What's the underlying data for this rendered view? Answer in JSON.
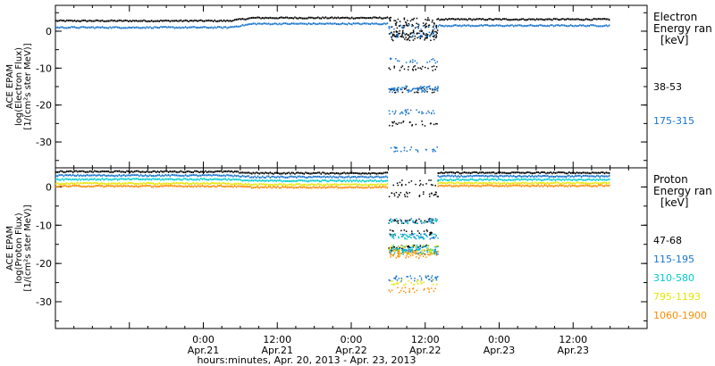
{
  "chart_data": [
    {
      "type": "scatter",
      "panel": "top",
      "ylabel_lines": [
        "ACE EPAM",
        "log(Electron Flux)",
        "[1/(cm²s ster MeV)]"
      ],
      "ylim": [
        -37,
        7
      ],
      "yticks": [
        0,
        -10,
        -20,
        -30
      ],
      "legend_title_lines": [
        "Electron",
        "Energy ran",
        "[keV]"
      ],
      "series": [
        {
          "name": "38-53",
          "color": "#000000",
          "description": "flux ~2.5 log units before Apr 21 ~08:00 rising to ~3.5, data gap with scattered points Apr 22 06:00-14:00 (values ~-1 to 3, a few near -10, -16, -25), then ~3.2"
        },
        {
          "name": "175-315",
          "color": "#1874cd",
          "description": "flux ~1 log unit before Apr 21 ~08:00 rising to ~2, gap region Apr 22 06:00-14:00 with cluster near -16 and scattered points near -8, -22, -32, then ~1.5"
        }
      ]
    },
    {
      "type": "scatter",
      "panel": "bottom",
      "ylabel_lines": [
        "ACE EPAM",
        "log(Proton Flux)",
        "[1/(cm²s ster MeV)]"
      ],
      "ylim": [
        -37,
        5
      ],
      "yticks": [
        0,
        -10,
        -20,
        -30
      ],
      "legend_title_lines": [
        "Proton",
        "Energy ran",
        "[keV]"
      ],
      "series": [
        {
          "name": "47-68",
          "color": "#000000",
          "description": "~3.5 level, gap-region points near -9, -12, -16"
        },
        {
          "name": "115-195",
          "color": "#1874cd",
          "description": "~2.5 level, gap-region points near -9, -13, -17, -24"
        },
        {
          "name": "310-580",
          "color": "#00cccc",
          "description": "~1.5 level, gap-region points near -9, -13, -17"
        },
        {
          "name": "795-1193",
          "color": "#e6e600",
          "description": "~0.5 level, gap-region points near -17, -25"
        },
        {
          "name": "1060-1900",
          "color": "#ff8c00",
          "description": "~0 level, gap-region points near -17, -27"
        }
      ]
    }
  ],
  "x_axis": {
    "ticks": [
      {
        "time": "0:00",
        "date": "Apr.21",
        "hours_since_start": 24
      },
      {
        "time": "12:00",
        "date": "Apr.21",
        "hours_since_start": 36
      },
      {
        "time": "0:00",
        "date": "Apr.22",
        "hours_since_start": 48
      },
      {
        "time": "12:00",
        "date": "Apr.22",
        "hours_since_start": 60
      },
      {
        "time": "0:00",
        "date": "Apr.23",
        "hours_since_start": 72
      },
      {
        "time": "12:00",
        "date": "Apr.23",
        "hours_since_start": 84
      }
    ],
    "xlabel": "hours:minutes, Apr. 20, 2013 - Apr. 23, 2013"
  },
  "colors": {
    "axis": "#000000",
    "background": "#ffffff"
  }
}
